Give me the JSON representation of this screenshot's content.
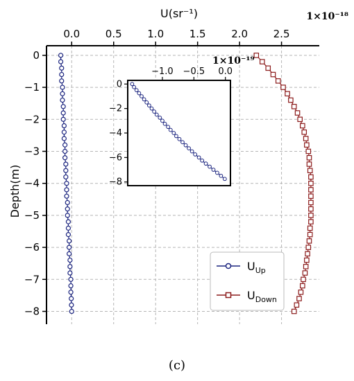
{
  "chart_data": [
    {
      "type": "line",
      "xlabel": "U(sr$^{-1}$)",
      "xlabel_display": "U(sr⁻¹)",
      "ylabel": "Depth(m)",
      "x_multiplier": "1×10⁻¹⁸",
      "xlim": [
        -0.3,
        2.95
      ],
      "ylim": [
        -8.4,
        0.3
      ],
      "x_ticks": [
        0.0,
        0.5,
        1.0,
        1.5,
        2.0,
        2.5
      ],
      "x_tick_labels": [
        "0.0",
        "0.5",
        "1.0",
        "1.5",
        "2.0",
        "2.5"
      ],
      "y_ticks": [
        0,
        -1,
        -2,
        -3,
        -4,
        -5,
        -6,
        -7,
        -8
      ],
      "y_tick_labels": [
        "0",
        "−1",
        "−2",
        "−3",
        "−4",
        "−5",
        "−6",
        "−7",
        "−8"
      ],
      "grid": true,
      "legend_position": "bottom-right",
      "series": [
        {
          "name": "U_Up",
          "legend_main": "U",
          "legend_sub": "Up",
          "color": "#1a237e",
          "marker": "circle",
          "depth": [
            0.0,
            -0.2,
            -0.4,
            -0.6,
            -0.8,
            -1.0,
            -1.2,
            -1.4,
            -1.6,
            -1.8,
            -2.0,
            -2.2,
            -2.4,
            -2.6,
            -2.8,
            -3.0,
            -3.2,
            -3.4,
            -3.6,
            -3.8,
            -4.0,
            -4.2,
            -4.4,
            -4.6,
            -4.8,
            -5.0,
            -5.2,
            -5.4,
            -5.6,
            -5.8,
            -6.0,
            -6.2,
            -6.4,
            -6.6,
            -6.8,
            -7.0,
            -7.2,
            -7.4,
            -7.6,
            -7.8,
            -8.0
          ],
          "values": [
            -0.13,
            -0.13,
            -0.12,
            -0.12,
            -0.12,
            -0.11,
            -0.11,
            -0.11,
            -0.1,
            -0.1,
            -0.1,
            -0.09,
            -0.09,
            -0.09,
            -0.08,
            -0.08,
            -0.08,
            -0.07,
            -0.07,
            -0.07,
            -0.06,
            -0.06,
            -0.06,
            -0.05,
            -0.05,
            -0.05,
            -0.04,
            -0.04,
            -0.04,
            -0.03,
            -0.03,
            -0.03,
            -0.02,
            -0.02,
            -0.02,
            -0.01,
            -0.01,
            -0.01,
            -0.005,
            -0.003,
            0.0
          ]
        },
        {
          "name": "U_Down",
          "legend_main": "U",
          "legend_sub": "Down",
          "color": "#8b1a1a",
          "marker": "square",
          "depth": [
            0.0,
            -0.2,
            -0.4,
            -0.6,
            -0.8,
            -1.0,
            -1.2,
            -1.4,
            -1.6,
            -1.8,
            -2.0,
            -2.2,
            -2.4,
            -2.6,
            -2.8,
            -3.0,
            -3.2,
            -3.4,
            -3.6,
            -3.8,
            -4.0,
            -4.2,
            -4.4,
            -4.6,
            -4.8,
            -5.0,
            -5.2,
            -5.4,
            -5.6,
            -5.8,
            -6.0,
            -6.2,
            -6.4,
            -6.6,
            -6.8,
            -7.0,
            -7.2,
            -7.4,
            -7.6,
            -7.8,
            -8.0
          ],
          "values": [
            2.2,
            2.27,
            2.34,
            2.4,
            2.46,
            2.52,
            2.57,
            2.61,
            2.65,
            2.69,
            2.72,
            2.75,
            2.77,
            2.79,
            2.8,
            2.82,
            2.83,
            2.83,
            2.84,
            2.85,
            2.85,
            2.85,
            2.85,
            2.85,
            2.85,
            2.85,
            2.85,
            2.84,
            2.84,
            2.83,
            2.82,
            2.81,
            2.8,
            2.79,
            2.78,
            2.76,
            2.75,
            2.73,
            2.71,
            2.68,
            2.65
          ]
        }
      ]
    },
    {
      "type": "line",
      "role": "inset",
      "x_multiplier": "1×10⁻¹⁹",
      "xlim": [
        -1.55,
        0.08
      ],
      "ylim": [
        -8.3,
        0.3
      ],
      "x_ticks": [
        -1.0,
        -0.5,
        0.0
      ],
      "x_tick_labels": [
        "−1.0",
        "−0.5",
        "0.0"
      ],
      "y_ticks": [
        0,
        -2,
        -4,
        -6,
        -8
      ],
      "y_tick_labels": [
        "0",
        "−2",
        "−4",
        "−6",
        "−8"
      ],
      "grid": false,
      "series": [
        {
          "name": "U_Up",
          "color": "#1a237e",
          "marker": "circle",
          "depth": [
            0.0,
            -0.25,
            -0.5,
            -0.75,
            -1.0,
            -1.25,
            -1.5,
            -1.75,
            -2.0,
            -2.25,
            -2.5,
            -2.75,
            -3.0,
            -3.25,
            -3.5,
            -3.75,
            -4.0,
            -4.25,
            -4.5,
            -4.75,
            -5.0,
            -5.25,
            -5.5,
            -5.75,
            -6.0,
            -6.25,
            -6.5,
            -6.75,
            -7.0,
            -7.25,
            -7.5,
            -7.75
          ],
          "values": [
            -1.48,
            -1.45,
            -1.41,
            -1.37,
            -1.33,
            -1.29,
            -1.25,
            -1.21,
            -1.17,
            -1.13,
            -1.09,
            -1.04,
            -1.0,
            -0.96,
            -0.91,
            -0.87,
            -0.82,
            -0.78,
            -0.73,
            -0.68,
            -0.63,
            -0.58,
            -0.53,
            -0.48,
            -0.42,
            -0.37,
            -0.31,
            -0.25,
            -0.19,
            -0.13,
            -0.07,
            -0.01
          ]
        }
      ]
    }
  ],
  "caption": "(c)"
}
